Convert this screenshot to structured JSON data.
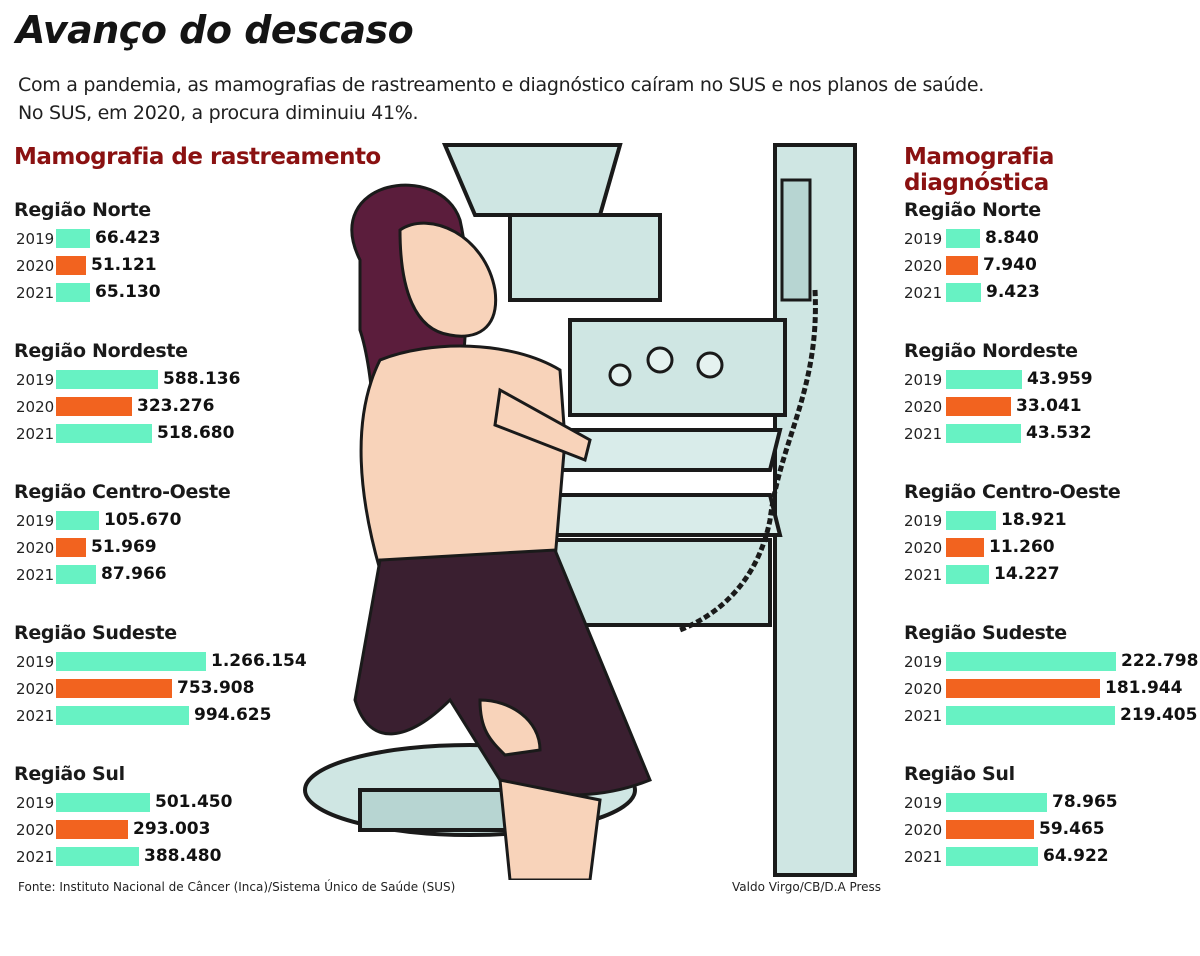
{
  "title": "Avanço do descaso",
  "subtitle": [
    "Com a pandemia, as mamografias de rastreamento e diagnóstico caíram no SUS e nos planos de saúde.",
    "No SUS, em 2020, a procura diminuiu 41%."
  ],
  "colors": {
    "increase": "#67f2c3",
    "decrease": "#f2631f",
    "heading": "#8a1111"
  },
  "chart_data": [
    {
      "type": "bar",
      "orientation": "horizontal",
      "title": "Mamografia de rastreamento",
      "years": [
        "2019",
        "2020",
        "2021"
      ],
      "groups": [
        {
          "name": "Região Norte",
          "values": [
            66423,
            51121,
            65130
          ],
          "labels": [
            "66.423",
            "51.121",
            "65.130"
          ]
        },
        {
          "name": "Região Nordeste",
          "values": [
            588136,
            323276,
            518680
          ],
          "labels": [
            "588.136",
            "323.276",
            "518.680"
          ]
        },
        {
          "name": "Região Centro-Oeste",
          "values": [
            105670,
            51969,
            87966
          ],
          "labels": [
            "105.670",
            "51.969",
            "87.966"
          ]
        },
        {
          "name": "Região Sudeste",
          "values": [
            1266154,
            753908,
            994625
          ],
          "labels": [
            "1.266.154",
            "753.908",
            "994.625"
          ]
        },
        {
          "name": "Região Sul",
          "values": [
            501450,
            293003,
            388480
          ],
          "labels": [
            "501.450",
            "293.003",
            "388.480"
          ]
        }
      ]
    },
    {
      "type": "bar",
      "orientation": "horizontal",
      "title": "Mamografia diagnóstica",
      "years": [
        "2019",
        "2020",
        "2021"
      ],
      "groups": [
        {
          "name": "Região Norte",
          "values": [
            8840,
            7940,
            9423
          ],
          "labels": [
            "8.840",
            "7.940",
            "9.423"
          ]
        },
        {
          "name": "Região Nordeste",
          "values": [
            43959,
            33041,
            43532
          ],
          "labels": [
            "43.959",
            "33.041",
            "43.532"
          ]
        },
        {
          "name": "Região Centro-Oeste",
          "values": [
            18921,
            11260,
            14227
          ],
          "labels": [
            "18.921",
            "11.260",
            "14.227"
          ]
        },
        {
          "name": "Região Sudeste",
          "values": [
            222798,
            181944,
            219405
          ],
          "labels": [
            "222.798",
            "181.944",
            "219.405"
          ]
        },
        {
          "name": "Região Sul",
          "values": [
            78965,
            59465,
            64922
          ],
          "labels": [
            "78.965",
            "59.465",
            "64.922"
          ]
        }
      ]
    }
  ],
  "footer": {
    "source": "Fonte: Instituto Nacional de Câncer (Inca)/Sistema Único de Saúde (SUS)",
    "credit": "Valdo Virgo/CB/D.A Press"
  }
}
